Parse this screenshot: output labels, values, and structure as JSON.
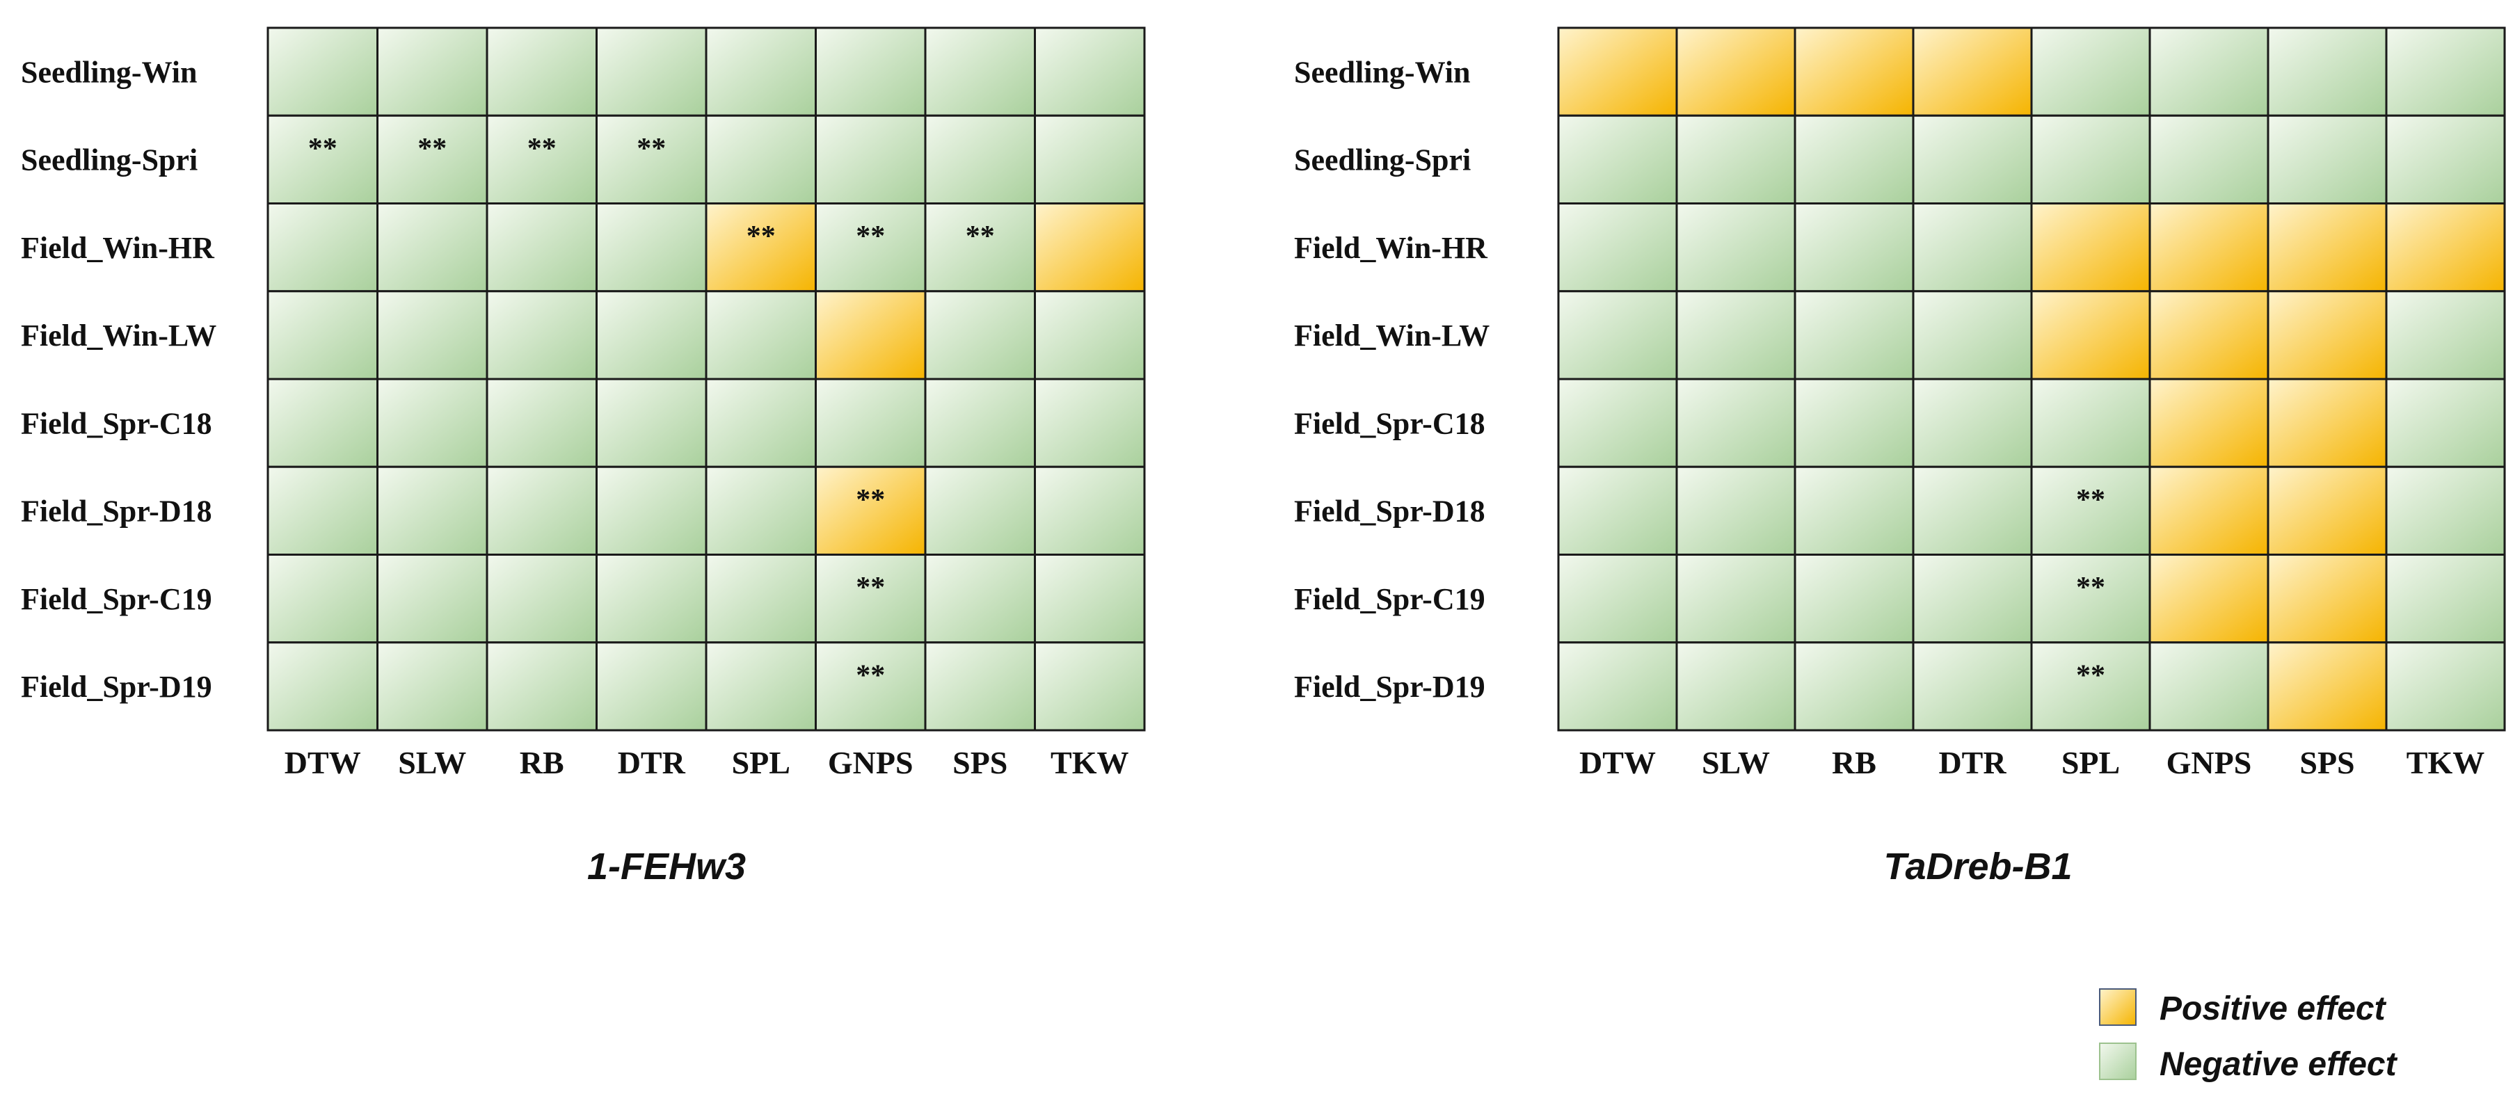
{
  "chart_data": [
    {
      "type": "heatmap",
      "title": "1-FEHw3",
      "rows": [
        "Seedling-Win",
        "Seedling-Spri",
        "Field_Win-HR",
        "Field_Win-LW",
        "Field_Spr-C18",
        "Field_Spr-D18",
        "Field_Spr-C19",
        "Field_Spr-D19"
      ],
      "columns": [
        "DTW",
        "SLW",
        "RB",
        "DTR",
        "SPL",
        "GNPS",
        "SPS",
        "TKW"
      ],
      "effect": [
        [
          "N",
          "N",
          "N",
          "N",
          "N",
          "N",
          "N",
          "N"
        ],
        [
          "N",
          "N",
          "N",
          "N",
          "N",
          "N",
          "N",
          "N"
        ],
        [
          "N",
          "N",
          "N",
          "N",
          "P",
          "N",
          "N",
          "P"
        ],
        [
          "N",
          "N",
          "N",
          "N",
          "N",
          "P",
          "N",
          "N"
        ],
        [
          "N",
          "N",
          "N",
          "N",
          "N",
          "N",
          "N",
          "N"
        ],
        [
          "N",
          "N",
          "N",
          "N",
          "N",
          "P",
          "N",
          "N"
        ],
        [
          "N",
          "N",
          "N",
          "N",
          "N",
          "N",
          "N",
          "N"
        ],
        [
          "N",
          "N",
          "N",
          "N",
          "N",
          "N",
          "N",
          "N"
        ]
      ],
      "significance": [
        [
          "",
          "",
          "",
          "",
          "",
          "",
          "",
          ""
        ],
        [
          "**",
          "**",
          "**",
          "**",
          "",
          "",
          "",
          ""
        ],
        [
          "",
          "",
          "",
          "",
          "**",
          "**",
          "**",
          ""
        ],
        [
          "",
          "",
          "",
          "",
          "",
          "",
          "",
          ""
        ],
        [
          "",
          "",
          "",
          "",
          "",
          "",
          "",
          ""
        ],
        [
          "",
          "",
          "",
          "",
          "",
          "**",
          "",
          ""
        ],
        [
          "",
          "",
          "",
          "",
          "",
          "**",
          "",
          ""
        ],
        [
          "",
          "",
          "",
          "",
          "",
          "**",
          "",
          ""
        ]
      ]
    },
    {
      "type": "heatmap",
      "title": "TaDreb-B1",
      "rows": [
        "Seedling-Win",
        "Seedling-Spri",
        "Field_Win-HR",
        "Field_Win-LW",
        "Field_Spr-C18",
        "Field_Spr-D18",
        "Field_Spr-C19",
        "Field_Spr-D19"
      ],
      "columns": [
        "DTW",
        "SLW",
        "RB",
        "DTR",
        "SPL",
        "GNPS",
        "SPS",
        "TKW"
      ],
      "effect": [
        [
          "P",
          "P",
          "P",
          "P",
          "N",
          "N",
          "N",
          "N"
        ],
        [
          "N",
          "N",
          "N",
          "N",
          "N",
          "N",
          "N",
          "N"
        ],
        [
          "N",
          "N",
          "N",
          "N",
          "P",
          "P",
          "P",
          "P"
        ],
        [
          "N",
          "N",
          "N",
          "N",
          "P",
          "P",
          "P",
          "N"
        ],
        [
          "N",
          "N",
          "N",
          "N",
          "N",
          "P",
          "P",
          "N"
        ],
        [
          "N",
          "N",
          "N",
          "N",
          "N",
          "P",
          "P",
          "N"
        ],
        [
          "N",
          "N",
          "N",
          "N",
          "N",
          "P",
          "P",
          "N"
        ],
        [
          "N",
          "N",
          "N",
          "N",
          "N",
          "N",
          "P",
          "N"
        ]
      ],
      "significance": [
        [
          "",
          "",
          "",
          "",
          "",
          "",
          "",
          ""
        ],
        [
          "",
          "",
          "",
          "",
          "",
          "",
          "",
          ""
        ],
        [
          "",
          "",
          "",
          "",
          "",
          "",
          "",
          ""
        ],
        [
          "",
          "",
          "",
          "",
          "",
          "",
          "",
          ""
        ],
        [
          "",
          "",
          "",
          "",
          "",
          "",
          "",
          ""
        ],
        [
          "",
          "",
          "",
          "",
          "**",
          "",
          "",
          ""
        ],
        [
          "",
          "",
          "",
          "",
          "**",
          "",
          "",
          ""
        ],
        [
          "",
          "",
          "",
          "",
          "**",
          "",
          "",
          ""
        ]
      ]
    }
  ],
  "legend": {
    "positive_label": "Positive effect",
    "negative_label": "Negative effect"
  },
  "colors": {
    "positive_light": "#fff3cc",
    "positive_dark": "#f5b400",
    "negative_light": "#f2f8ee",
    "negative_dark": "#a9d09c",
    "grid": "#1a1a1a"
  }
}
